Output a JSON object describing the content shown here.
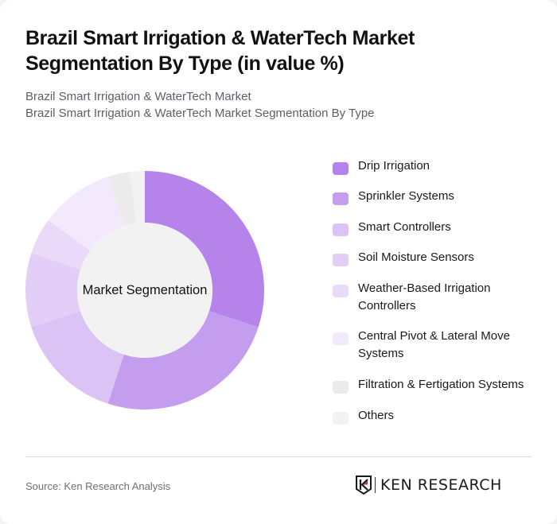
{
  "header": {
    "title": "Brazil Smart Irrigation & WaterTech Market Segmentation By Type (in value %)",
    "subtitle_line1": "Brazil Smart Irrigation & WaterTech Market",
    "subtitle_line2": "Brazil Smart Irrigation & WaterTech Market Segmentation By Type"
  },
  "chart": {
    "center_label": "Market Segmentation"
  },
  "legend": {
    "items": [
      {
        "label": "Drip Irrigation",
        "color": "#b583ea"
      },
      {
        "label": "Sprinkler Systems",
        "color": "#c59dee"
      },
      {
        "label": "Smart Controllers",
        "color": "#dcc3f5"
      },
      {
        "label": "Soil Moisture Sensors",
        "color": "#e2cef7"
      },
      {
        "label": "Weather-Based Irrigation Controllers",
        "color": "#ead9f9"
      },
      {
        "label": "Central Pivot & Lateral Move Systems",
        "color": "#f2eafc"
      },
      {
        "label": "Filtration & Fertigation Systems",
        "color": "#ebebeb"
      },
      {
        "label": "Others",
        "color": "#f2f2f2"
      }
    ]
  },
  "footer": {
    "source": "Source: Ken Research Analysis",
    "logo_text": "KEN RESEARCH"
  },
  "chart_data": {
    "type": "pie",
    "variant": "donut",
    "title": "Brazil Smart Irrigation & WaterTech Market Segmentation By Type (in value %)",
    "center_label": "Market Segmentation",
    "categories": [
      "Drip Irrigation",
      "Sprinkler Systems",
      "Smart Controllers",
      "Soil Moisture Sensors",
      "Weather-Based Irrigation Controllers",
      "Central Pivot & Lateral Move Systems",
      "Filtration & Fertigation Systems",
      "Others"
    ],
    "values": [
      30,
      25,
      15,
      10,
      5,
      10,
      3,
      2
    ],
    "colors": [
      "#b583ea",
      "#c59dee",
      "#dcc3f5",
      "#e2cef7",
      "#ead9f9",
      "#f2eafc",
      "#ebebeb",
      "#f2f2f2"
    ],
    "unit": "%",
    "legend_position": "right"
  }
}
